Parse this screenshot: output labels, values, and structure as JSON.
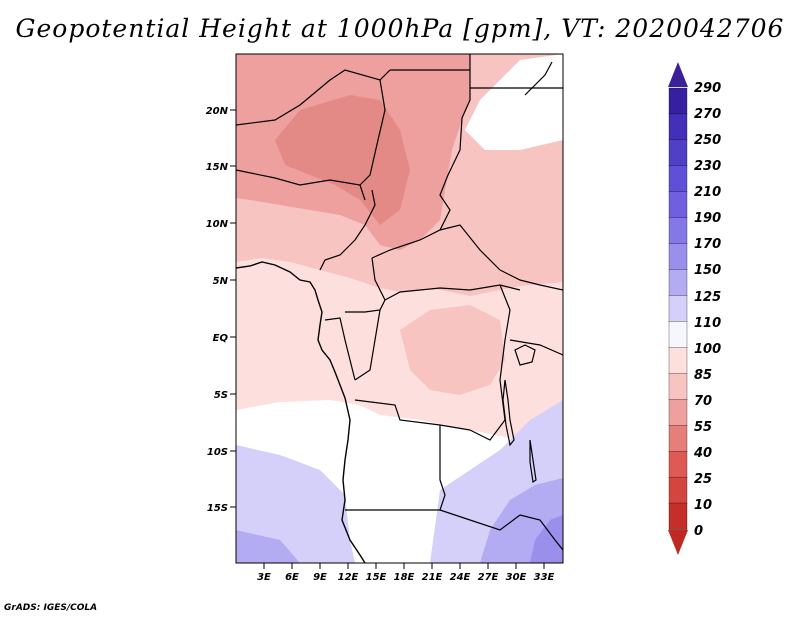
{
  "title": "Geopotential Height at 1000hPa [gpm], VT: 2020042706",
  "credit": "GrADS: IGES/COLA",
  "map": {
    "region": "Central Africa",
    "lat_ticks": [
      "20N",
      "15N",
      "10N",
      "5N",
      "EQ",
      "5S",
      "10S",
      "15S"
    ],
    "lon_ticks": [
      "3E",
      "6E",
      "9E",
      "12E",
      "15E",
      "18E",
      "21E",
      "24E",
      "27E",
      "30E",
      "33E"
    ]
  },
  "colorbar": {
    "labels": [
      "290",
      "270",
      "250",
      "230",
      "210",
      "190",
      "170",
      "150",
      "125",
      "110",
      "100",
      "85",
      "70",
      "55",
      "40",
      "25",
      "10",
      "0"
    ],
    "colors": {
      "top_arrow": "#3b2196",
      "bottom_arrow": "#bd2a23",
      "bands": [
        "#3620a0",
        "#4230b8",
        "#5040c8",
        "#6050d8",
        "#7060e0",
        "#8478e6",
        "#9a90ec",
        "#b4acf2",
        "#d4d0fa",
        "#f6f6ff",
        "#fde0de",
        "#f7c4c2",
        "#eda09e",
        "#e67e7a",
        "#de5a55",
        "#d44540",
        "#c42f2a"
      ]
    }
  },
  "chart_data": {
    "type": "heatmap",
    "title": "Geopotential Height at 1000hPa [gpm], VT: 2020042706",
    "variable": "Geopotential Height",
    "units": "gpm",
    "level": "1000hPa",
    "valid_time": "2020042706",
    "x_range_deg": [
      0,
      35
    ],
    "y_range_deg": [
      -21,
      24
    ],
    "contour_levels": [
      0,
      10,
      25,
      40,
      55,
      70,
      85,
      100,
      110,
      125,
      150,
      170,
      190,
      210,
      230,
      250,
      270,
      290
    ],
    "approx_ranges": {
      "Sahel 12N-22N": "70-85",
      "Equatorial belt 0-8N": "85-110",
      "Southern Africa 10S-20S": "110-170"
    }
  }
}
